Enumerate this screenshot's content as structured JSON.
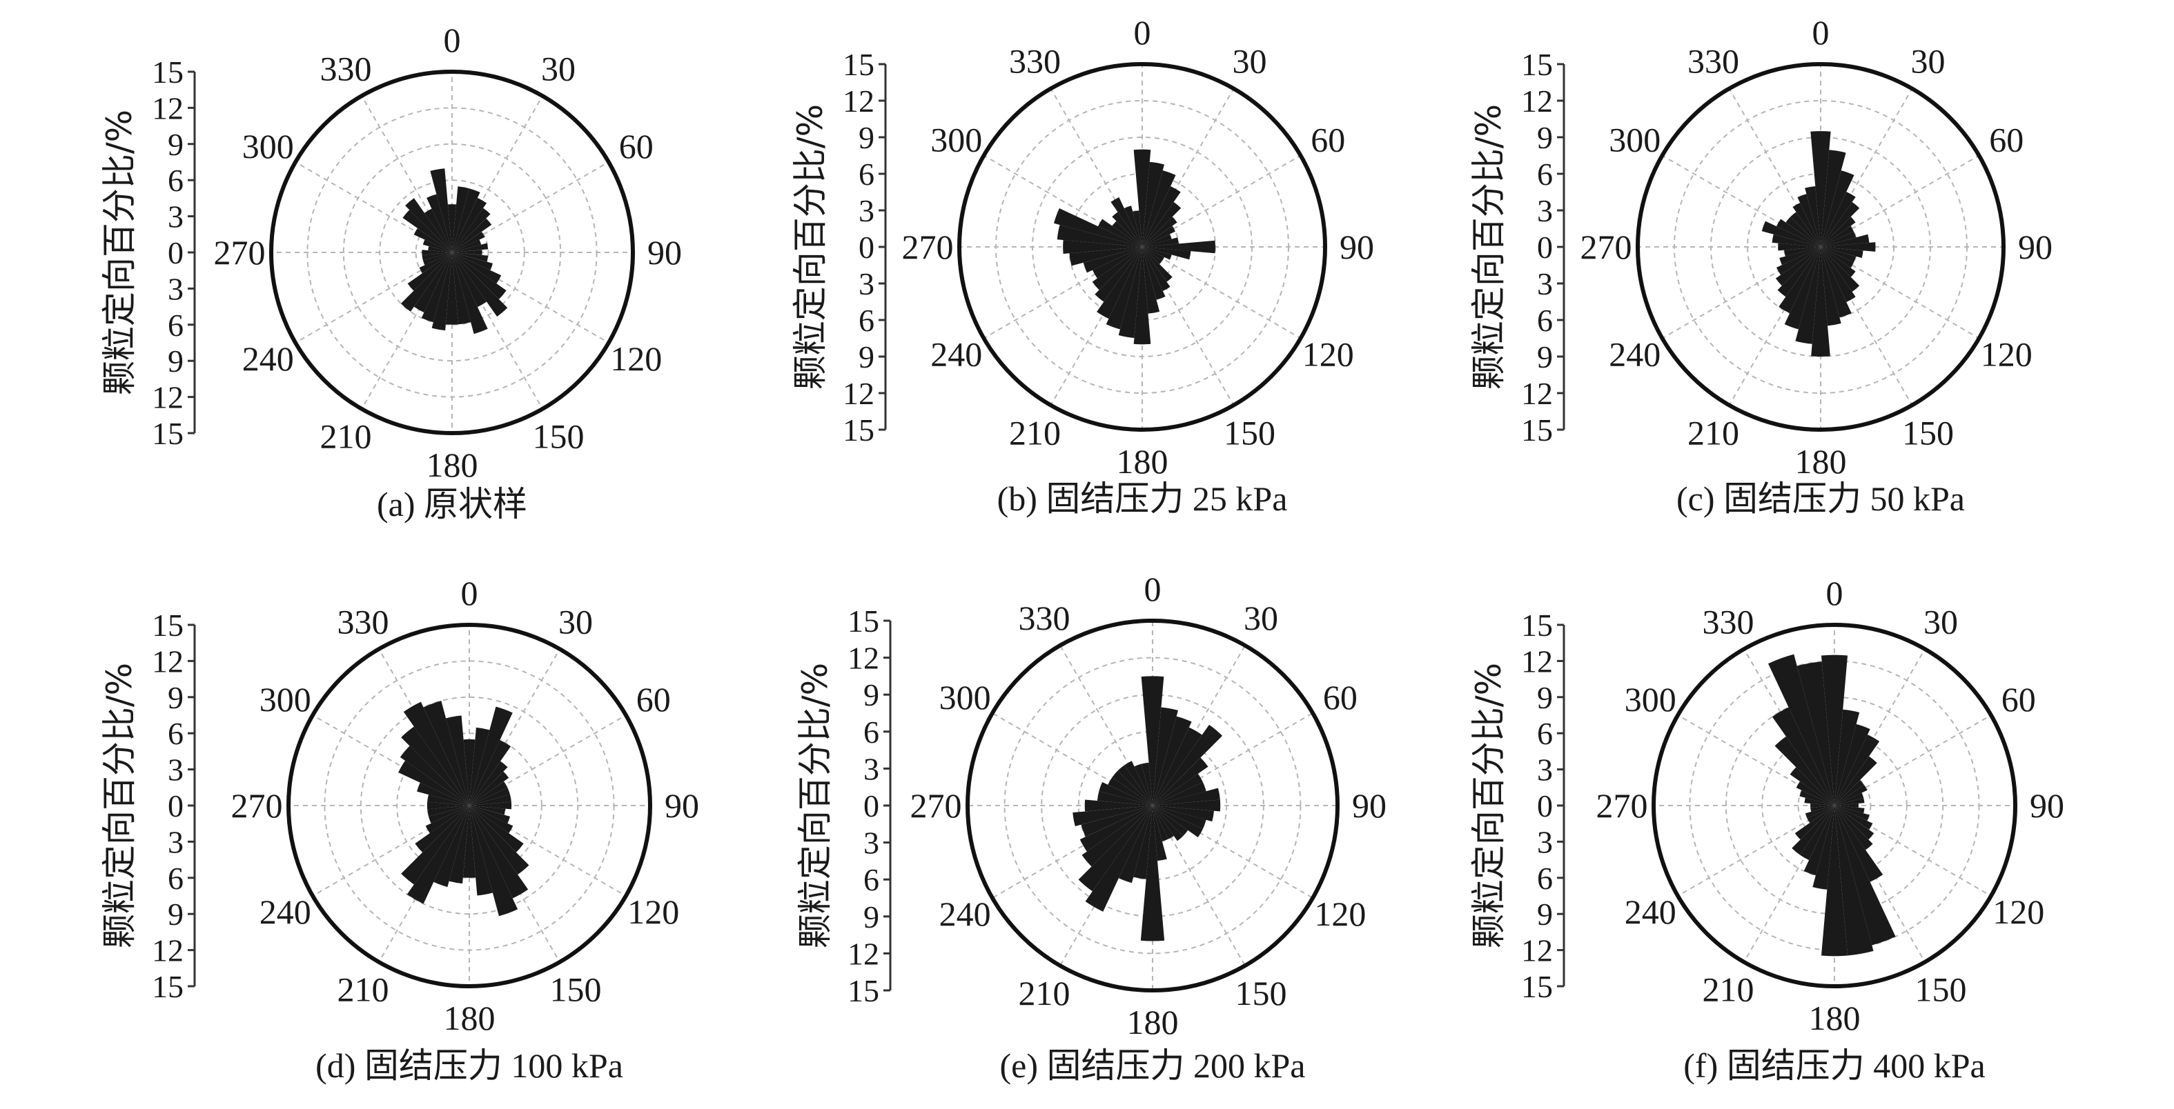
{
  "chart_data": [
    {
      "type": "polar-bar",
      "caption": "(a) 原状样",
      "ylabel": "颗粒定向百分比/%",
      "r_ticks": [
        "15",
        "12",
        "9",
        "6",
        "3",
        "0",
        "3",
        "6",
        "9",
        "12",
        "15"
      ],
      "rlim": [
        0,
        15
      ],
      "angle_ticks": [
        "0",
        "30",
        "60",
        "90",
        "120",
        "150",
        "180",
        "210",
        "240",
        "270",
        "300",
        "330"
      ],
      "angle_unit": "deg",
      "bin_width_deg": 10,
      "angles": [
        0,
        10,
        20,
        30,
        40,
        50,
        60,
        70,
        80,
        90,
        100,
        110,
        120,
        130,
        140,
        150,
        160,
        170,
        180,
        190,
        200,
        210,
        220,
        230,
        240,
        250,
        260,
        270,
        280,
        290,
        300,
        310,
        320,
        330,
        340,
        350
      ],
      "values": [
        4.0,
        5.5,
        5.5,
        5.0,
        4.5,
        4.0,
        3.0,
        2.5,
        3.0,
        2.5,
        3.0,
        3.5,
        4.5,
        5.5,
        6.5,
        5.0,
        7.0,
        6.0,
        6.0,
        6.5,
        6.0,
        5.5,
        6.0,
        4.5,
        3.0,
        2.5,
        2.5,
        2.5,
        2.0,
        2.5,
        3.5,
        5.0,
        5.5,
        4.0,
        5.0,
        7.0
      ]
    },
    {
      "type": "polar-bar",
      "caption": "(b) 固结压力 25 kPa",
      "ylabel": "颗粒定向百分比/%",
      "r_ticks": [
        "15",
        "12",
        "9",
        "6",
        "3",
        "0",
        "3",
        "6",
        "9",
        "12",
        "15"
      ],
      "rlim": [
        0,
        15
      ],
      "angle_ticks": [
        "0",
        "30",
        "60",
        "90",
        "120",
        "150",
        "180",
        "210",
        "240",
        "270",
        "300",
        "330"
      ],
      "angle_unit": "deg",
      "bin_width_deg": 10,
      "angles": [
        0,
        10,
        20,
        30,
        40,
        50,
        60,
        70,
        80,
        90,
        100,
        110,
        120,
        130,
        140,
        150,
        160,
        170,
        180,
        190,
        200,
        210,
        220,
        230,
        240,
        250,
        260,
        270,
        280,
        290,
        300,
        310,
        320,
        330,
        340,
        350
      ],
      "values": [
        8.0,
        7.0,
        6.5,
        5.5,
        4.5,
        3.5,
        3.0,
        2.5,
        3.0,
        6.0,
        4.0,
        2.5,
        2.0,
        2.0,
        3.5,
        4.0,
        4.5,
        5.5,
        8.0,
        7.5,
        7.0,
        6.5,
        5.5,
        5.0,
        4.5,
        5.0,
        6.0,
        6.5,
        7.0,
        7.5,
        4.0,
        3.0,
        3.5,
        4.5,
        3.5,
        3.0
      ]
    },
    {
      "type": "polar-bar",
      "caption": "(c) 固结压力 50 kPa",
      "ylabel": "颗粒定向百分比/%",
      "r_ticks": [
        "15",
        "12",
        "9",
        "6",
        "3",
        "0",
        "3",
        "6",
        "9",
        "12",
        "15"
      ],
      "rlim": [
        0,
        15
      ],
      "angle_ticks": [
        "0",
        "30",
        "60",
        "90",
        "120",
        "150",
        "180",
        "210",
        "240",
        "270",
        "300",
        "330"
      ],
      "angle_unit": "deg",
      "bin_width_deg": 10,
      "angles": [
        0,
        10,
        20,
        30,
        40,
        50,
        60,
        70,
        80,
        90,
        100,
        110,
        120,
        130,
        140,
        150,
        160,
        170,
        180,
        190,
        200,
        210,
        220,
        230,
        240,
        250,
        260,
        270,
        280,
        290,
        300,
        310,
        320,
        330,
        340,
        350
      ],
      "values": [
        9.5,
        8.0,
        6.5,
        5.0,
        4.5,
        3.5,
        3.0,
        3.0,
        4.0,
        4.5,
        3.5,
        3.0,
        3.0,
        3.5,
        4.5,
        5.0,
        6.0,
        6.5,
        9.0,
        8.0,
        7.0,
        6.0,
        5.0,
        4.5,
        4.0,
        3.5,
        3.0,
        3.5,
        4.0,
        5.0,
        4.0,
        3.5,
        3.5,
        4.0,
        4.5,
        5.0
      ]
    },
    {
      "type": "polar-bar",
      "caption": "(d) 固结压力 100 kPa",
      "ylabel": "颗粒定向百分比/%",
      "r_ticks": [
        "15",
        "12",
        "9",
        "6",
        "3",
        "0",
        "3",
        "6",
        "9",
        "12",
        "15"
      ],
      "rlim": [
        0,
        15
      ],
      "angle_ticks": [
        "0",
        "30",
        "60",
        "90",
        "120",
        "150",
        "180",
        "210",
        "240",
        "270",
        "300",
        "330"
      ],
      "angle_unit": "deg",
      "bin_width_deg": 10,
      "angles": [
        0,
        10,
        20,
        30,
        40,
        50,
        60,
        70,
        80,
        90,
        100,
        110,
        120,
        130,
        140,
        150,
        160,
        170,
        180,
        190,
        200,
        210,
        220,
        230,
        240,
        250,
        260,
        270,
        280,
        290,
        300,
        310,
        320,
        330,
        340,
        350
      ],
      "values": [
        5.5,
        6.5,
        8.5,
        6.0,
        4.5,
        4.0,
        3.5,
        3.5,
        3.5,
        3.5,
        3.0,
        3.5,
        4.0,
        5.5,
        7.0,
        8.5,
        9.5,
        7.5,
        6.0,
        6.5,
        7.0,
        9.0,
        8.0,
        5.5,
        4.0,
        3.5,
        3.5,
        3.5,
        3.5,
        4.5,
        6.5,
        7.0,
        8.0,
        9.5,
        9.0,
        7.5
      ]
    },
    {
      "type": "polar-bar",
      "caption": "(e) 固结压力 200 kPa",
      "ylabel": "颗粒定向百分比/%",
      "r_ticks": [
        "15",
        "12",
        "9",
        "6",
        "3",
        "0",
        "3",
        "6",
        "9",
        "12",
        "15"
      ],
      "rlim": [
        0,
        15
      ],
      "angle_ticks": [
        "0",
        "30",
        "60",
        "90",
        "120",
        "150",
        "180",
        "210",
        "240",
        "270",
        "300",
        "330"
      ],
      "angle_unit": "deg",
      "bin_width_deg": 10,
      "angles": [
        0,
        10,
        20,
        30,
        40,
        50,
        60,
        70,
        80,
        90,
        100,
        110,
        120,
        130,
        140,
        150,
        160,
        170,
        180,
        190,
        200,
        210,
        220,
        230,
        240,
        250,
        260,
        270,
        280,
        290,
        300,
        310,
        320,
        330,
        340,
        350
      ],
      "values": [
        10.5,
        8.0,
        7.5,
        7.0,
        8.0,
        5.5,
        4.5,
        4.5,
        5.5,
        5.5,
        5.0,
        4.5,
        4.5,
        3.5,
        3.5,
        3.0,
        3.0,
        4.5,
        11.0,
        6.0,
        6.5,
        9.5,
        8.5,
        7.0,
        6.5,
        6.0,
        6.5,
        5.5,
        4.5,
        4.5,
        4.0,
        4.0,
        4.0,
        4.0,
        3.5,
        3.5
      ]
    },
    {
      "type": "polar-bar",
      "caption": "(f) 固结压力 400 kPa",
      "ylabel": "颗粒定向百分比/%",
      "r_ticks": [
        "15",
        "12",
        "9",
        "6",
        "3",
        "0",
        "3",
        "6",
        "9",
        "12",
        "15"
      ],
      "rlim": [
        0,
        15
      ],
      "angle_ticks": [
        "0",
        "30",
        "60",
        "90",
        "120",
        "150",
        "180",
        "210",
        "240",
        "270",
        "300",
        "330"
      ],
      "angle_unit": "deg",
      "bin_width_deg": 10,
      "angles": [
        0,
        10,
        20,
        30,
        40,
        50,
        60,
        70,
        80,
        90,
        100,
        110,
        120,
        130,
        140,
        150,
        160,
        170,
        180,
        190,
        200,
        210,
        220,
        230,
        240,
        250,
        260,
        270,
        280,
        290,
        300,
        310,
        320,
        330,
        340,
        350
      ],
      "values": [
        12.5,
        8.0,
        7.0,
        6.5,
        5.0,
        3.0,
        3.0,
        2.5,
        2.5,
        2.0,
        2.5,
        3.0,
        3.5,
        4.0,
        4.5,
        7.0,
        12.0,
        12.5,
        12.5,
        7.0,
        6.0,
        5.0,
        5.0,
        4.0,
        2.5,
        2.5,
        2.0,
        2.0,
        2.5,
        3.0,
        3.5,
        4.5,
        7.0,
        9.0,
        13.0,
        12.0
      ]
    }
  ]
}
